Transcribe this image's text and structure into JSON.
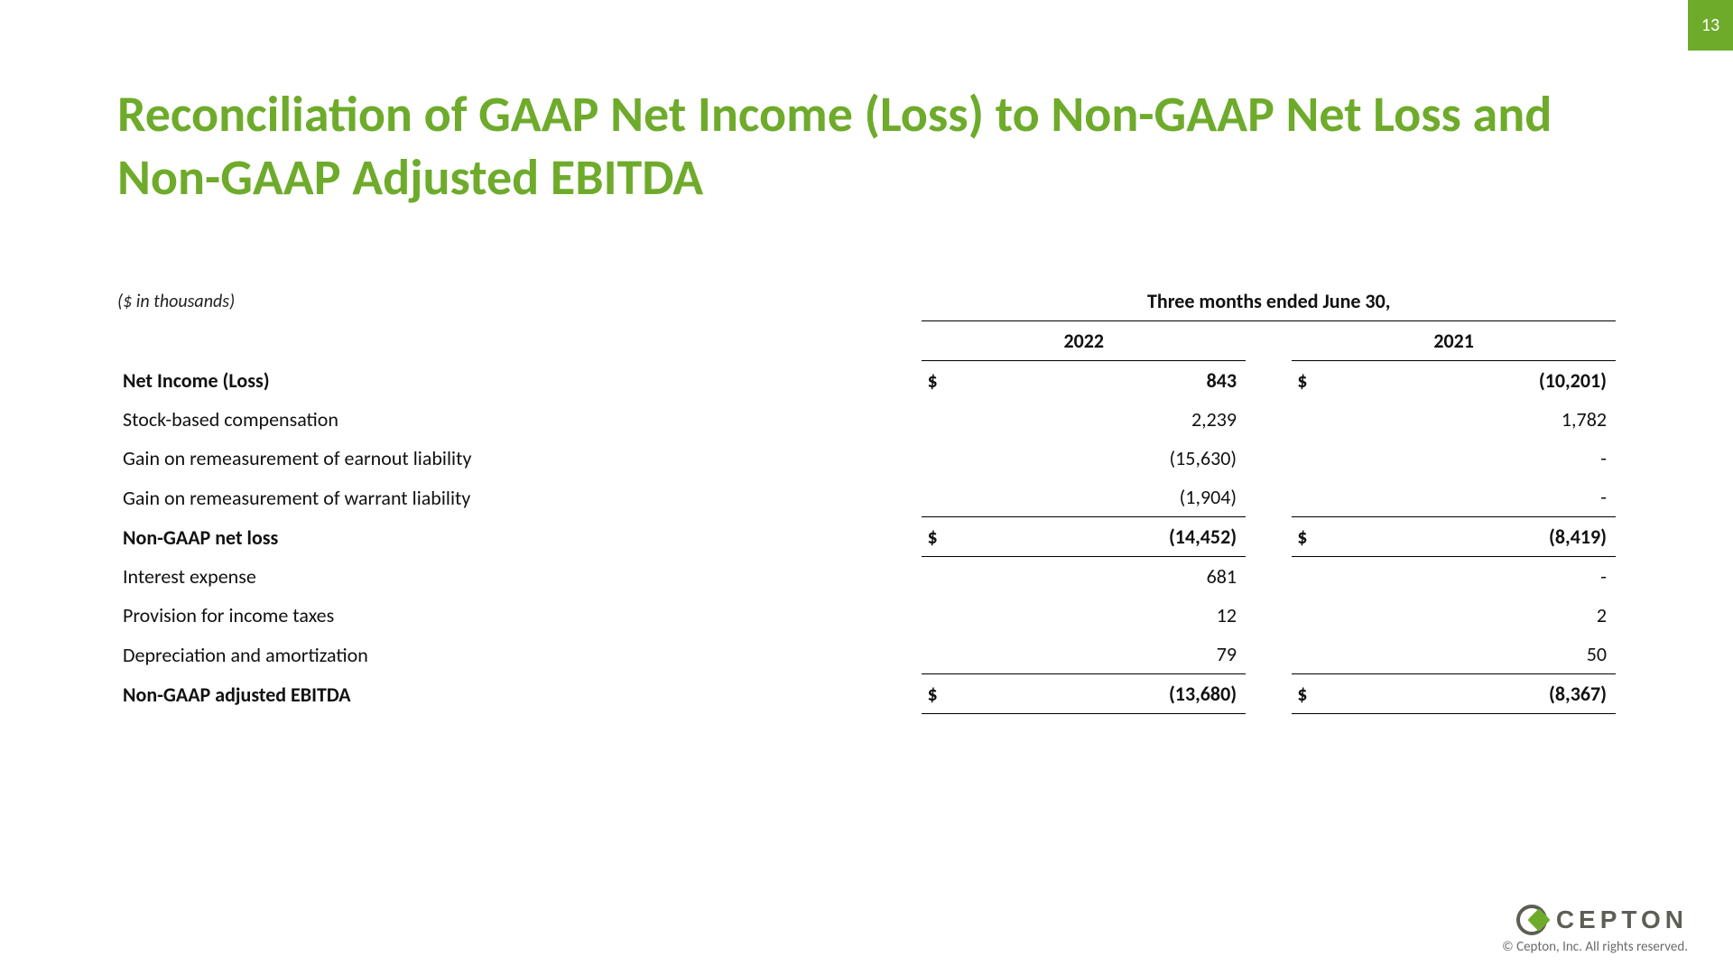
{
  "page_number": "13",
  "title": "Reconciliation of GAAP Net Income (Loss) to Non-GAAP Net Loss and Non-GAAP Adjusted EBITDA",
  "subhead": "($ in thousands)",
  "colors": {
    "accent": "#6eab2b",
    "text": "#111111",
    "muted": "#6b6b6b",
    "background": "#ffffff"
  },
  "table": {
    "period_header": "Three months ended June 30,",
    "years": [
      "2022",
      "2021"
    ],
    "rows": [
      {
        "label": "Net Income (Loss)",
        "bold": true,
        "currency": "$",
        "values": [
          "843",
          "(10,201)"
        ],
        "border": "none"
      },
      {
        "label": "Stock-based compensation",
        "bold": false,
        "currency": "",
        "values": [
          "2,239",
          "1,782"
        ],
        "border": "none"
      },
      {
        "label": "Gain on remeasurement of earnout liability",
        "bold": false,
        "currency": "",
        "values": [
          "(15,630)",
          "-"
        ],
        "border": "none"
      },
      {
        "label": "Gain on remeasurement of warrant liability",
        "bold": false,
        "currency": "",
        "values": [
          "(1,904)",
          "-"
        ],
        "border": "bb"
      },
      {
        "label": "Non-GAAP net loss",
        "bold": true,
        "currency": "$",
        "values": [
          "(14,452)",
          "(8,419)"
        ],
        "border": "bb"
      },
      {
        "label": "Interest expense",
        "bold": false,
        "currency": "",
        "values": [
          "681",
          "-"
        ],
        "border": "none"
      },
      {
        "label": "Provision for income taxes",
        "bold": false,
        "currency": "",
        "values": [
          "12",
          "2"
        ],
        "border": "none"
      },
      {
        "label": "Depreciation and amortization",
        "bold": false,
        "currency": "",
        "values": [
          "79",
          "50"
        ],
        "border": "bb"
      },
      {
        "label": "Non-GAAP adjusted EBITDA",
        "bold": true,
        "currency": "$",
        "values": [
          "(13,680)",
          "(8,367)"
        ],
        "border": "bb"
      }
    ]
  },
  "footer": {
    "brand": "CEPTON",
    "copyright": "© Cepton, Inc. All rights reserved."
  }
}
